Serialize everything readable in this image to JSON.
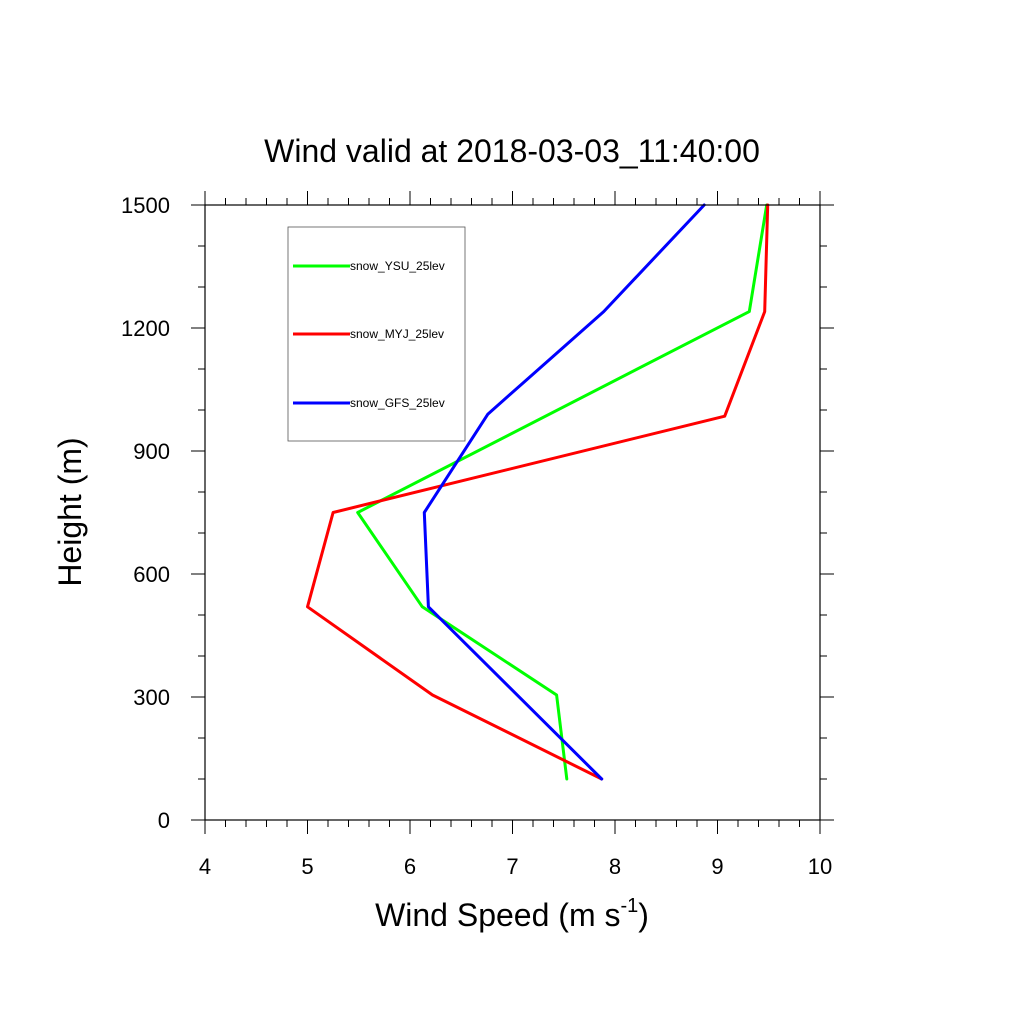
{
  "chart_data": {
    "type": "line",
    "title": "Wind valid at 2018-03-03_11:40:00",
    "xlabel": "Wind Speed (m s",
    "xlabel_sup": "-1",
    "xlabel_close": ")",
    "ylabel": "Height (m)",
    "xlim": [
      4,
      10
    ],
    "ylim": [
      0,
      1500
    ],
    "xticks": [
      4,
      5,
      6,
      7,
      8,
      9,
      10
    ],
    "yticks": [
      0,
      300,
      600,
      900,
      1200,
      1500
    ],
    "xtick_labels": [
      "4",
      "5",
      "6",
      "7",
      "8",
      "9",
      "10"
    ],
    "ytick_labels": [
      "0",
      "300",
      "600",
      "900",
      "1200",
      "1500"
    ],
    "grid": false,
    "legend_position": "top-left",
    "series": [
      {
        "name": "snow_YSU_25lev",
        "color": "#00ff00",
        "points": [
          [
            7.53,
            100
          ],
          [
            7.43,
            305
          ],
          [
            6.12,
            520
          ],
          [
            5.49,
            750
          ],
          [
            9.31,
            1240
          ],
          [
            9.48,
            1500
          ]
        ]
      },
      {
        "name": "snow_MYJ_25lev",
        "color": "#ff0000",
        "points": [
          [
            7.87,
            100
          ],
          [
            6.22,
            305
          ],
          [
            5.0,
            520
          ],
          [
            5.25,
            750
          ],
          [
            9.07,
            985
          ],
          [
            9.46,
            1240
          ],
          [
            9.49,
            1500
          ]
        ]
      },
      {
        "name": "snow_GFS_25lev",
        "color": "#0000ff",
        "points": [
          [
            7.87,
            100
          ],
          [
            6.18,
            520
          ],
          [
            6.14,
            750
          ],
          [
            6.76,
            990
          ],
          [
            7.89,
            1240
          ],
          [
            8.87,
            1500
          ]
        ]
      }
    ]
  }
}
